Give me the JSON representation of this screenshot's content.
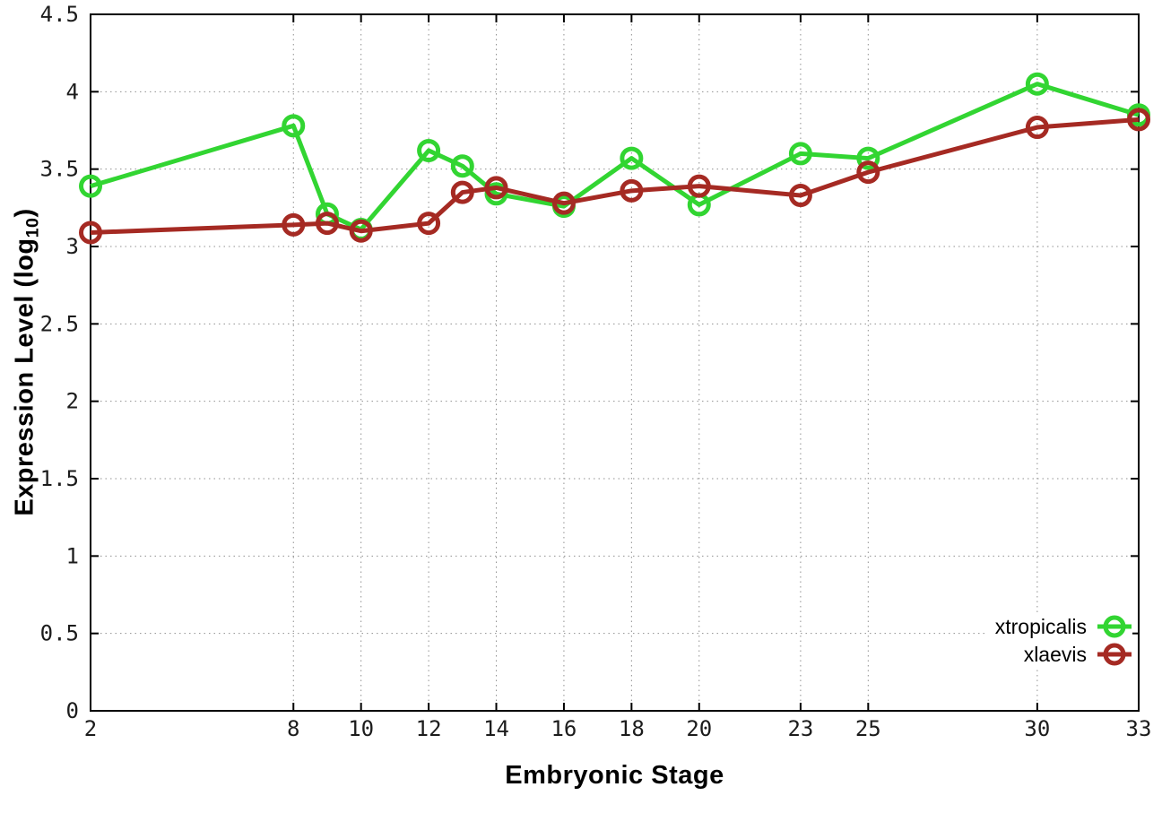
{
  "chart_data": {
    "type": "line",
    "title": "",
    "xlabel": "Embryonic Stage",
    "ylabel": {
      "pre": "Expression Level (log",
      "sub": "10",
      "post": ")"
    },
    "xlim": [
      2,
      33
    ],
    "ylim": [
      0,
      4.5
    ],
    "x_tick_values": [
      2,
      8,
      10,
      12,
      14,
      16,
      18,
      20,
      23,
      25,
      30,
      33
    ],
    "x_tick_labels": [
      "2",
      "8",
      "10",
      "12",
      "14",
      "16",
      "18",
      "20",
      "23",
      "25",
      "30",
      "33"
    ],
    "y_tick_values": [
      0,
      0.5,
      1,
      1.5,
      2,
      2.5,
      3,
      3.5,
      4,
      4.5
    ],
    "y_tick_labels": [
      "0",
      "0.5",
      "1",
      "1.5",
      "2",
      "2.5",
      "3",
      "3.5",
      "4",
      "4.5"
    ],
    "grid": true,
    "grid_style": "dotted",
    "legend_position": "inside-bottom-right",
    "x": [
      2,
      8,
      9,
      10,
      12,
      13,
      14,
      16,
      18,
      20,
      23,
      25,
      30,
      33
    ],
    "series": [
      {
        "name": "xtropicalis",
        "color": "#32d532",
        "marker": "open-circle",
        "values": [
          3.39,
          3.78,
          3.21,
          3.11,
          3.62,
          3.52,
          3.34,
          3.26,
          3.57,
          3.27,
          3.6,
          3.57,
          4.05,
          3.85
        ]
      },
      {
        "name": "xlaevis",
        "color": "#a52a23",
        "marker": "open-circle",
        "values": [
          3.09,
          3.14,
          3.15,
          3.1,
          3.15,
          3.35,
          3.38,
          3.28,
          3.36,
          3.39,
          3.33,
          3.48,
          3.77,
          3.82
        ]
      }
    ],
    "colors": {
      "axis": "#000000",
      "grid": "#909090",
      "tick_text": "#1c1c1c",
      "title_text": "#000000",
      "background": "#ffffff"
    }
  }
}
